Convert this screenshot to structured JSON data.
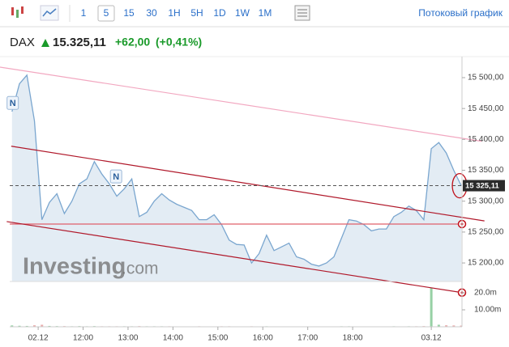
{
  "toolbar": {
    "intervals": [
      "1",
      "5",
      "15",
      "30",
      "1H",
      "5H",
      "1D",
      "1W",
      "1M"
    ],
    "selected_index": 1,
    "stream_link": "Потоковый график"
  },
  "header": {
    "symbol": "DAX",
    "price": "15.325,11",
    "change": "+62,00",
    "change_percent": "(+0,41%)"
  },
  "watermark": {
    "main": "Investing",
    "suffix": ".com"
  },
  "chart_data": {
    "type": "line",
    "color": "#7aa6cf",
    "fill_color": "#e3ecf4",
    "x": [
      625,
      635,
      645,
      655,
      665,
      675,
      685,
      695,
      705,
      715,
      725,
      735,
      745,
      755,
      765,
      775,
      785,
      795,
      805,
      815,
      825,
      835,
      845,
      855,
      865,
      875,
      885,
      895,
      905,
      915,
      925,
      935,
      945,
      955,
      965,
      975,
      985,
      995,
      1005,
      1015,
      1025,
      1035,
      1045,
      1055,
      1065,
      1075,
      1085,
      1095,
      1105,
      1115,
      1125,
      1135,
      1145,
      1155,
      1165,
      1175,
      1185,
      1195,
      1205,
      1215,
      1225
    ],
    "values": [
      15445,
      15490,
      15504,
      15430,
      15270,
      15298,
      15312,
      15280,
      15300,
      15328,
      15336,
      15364,
      15344,
      15328,
      15308,
      15320,
      15336,
      15275,
      15282,
      15300,
      15312,
      15302,
      15295,
      15290,
      15285,
      15270,
      15270,
      15278,
      15262,
      15237,
      15230,
      15229,
      15200,
      15215,
      15245,
      15220,
      15226,
      15232,
      15210,
      15206,
      15198,
      15195,
      15200,
      15210,
      15240,
      15270,
      15268,
      15262,
      15252,
      15255,
      15255,
      15275,
      15282,
      15292,
      15285,
      15270,
      15385,
      15395,
      15378,
      15350,
      15325
    ],
    "xlim": [
      622,
      1226
    ],
    "ylim": [
      15170,
      15534
    ],
    "xticks": [
      {
        "value": 660,
        "label": "02.12"
      },
      {
        "value": 720,
        "label": "12:00"
      },
      {
        "value": 780,
        "label": "13:00"
      },
      {
        "value": 840,
        "label": "14:00"
      },
      {
        "value": 900,
        "label": "15:00"
      },
      {
        "value": 960,
        "label": "16:00"
      },
      {
        "value": 1020,
        "label": "17:00"
      },
      {
        "value": 1080,
        "label": "18:00"
      },
      {
        "value": 1185,
        "label": "03.12"
      }
    ],
    "yticks": [
      {
        "value": 15200,
        "label": "15 200,00"
      },
      {
        "value": 15250,
        "label": "15 250,00"
      },
      {
        "value": 15300,
        "label": "15 300,00"
      },
      {
        "value": 15350,
        "label": "15 350,00"
      },
      {
        "value": 15400,
        "label": "15 400,00"
      },
      {
        "value": 15450,
        "label": "15 450,00"
      },
      {
        "value": 15500,
        "label": "15 500,00"
      }
    ],
    "last_price": {
      "value": 15325.11,
      "label": "15 325,11"
    },
    "volume": {
      "up_color": "#7dc58f",
      "down_color": "#e59a9a",
      "values": [
        800000,
        600000,
        500000,
        900000,
        1200000,
        500000,
        400000,
        400000,
        300000,
        400000,
        300000,
        400000,
        300000,
        300000,
        300000,
        300000,
        300000,
        400000,
        300000,
        300000,
        300000,
        300000,
        200000,
        200000,
        200000,
        300000,
        200000,
        200000,
        300000,
        300000,
        200000,
        200000,
        300000,
        200000,
        300000,
        200000,
        200000,
        200000,
        200000,
        200000,
        200000,
        200000,
        200000,
        200000,
        300000,
        300000,
        200000,
        200000,
        200000,
        200000,
        200000,
        300000,
        200000,
        300000,
        300000,
        400000,
        23000000,
        1200000,
        900000,
        800000,
        700000
      ],
      "ylim": [
        0,
        26700000
      ],
      "yticks": [
        {
          "value": 10000000,
          "label": "10.00m"
        },
        {
          "value": 20000000,
          "label": "20.0m"
        }
      ]
    },
    "annotations": [
      {
        "label": "N",
        "x": 626,
        "y": 15459
      },
      {
        "label": "N",
        "x": 764,
        "y": 15340
      }
    ],
    "drawings": [
      {
        "color": "#f2a7c0",
        "points": [
          [
            609,
            15517
          ],
          [
            1252,
            15397
          ]
        ]
      },
      {
        "color": "#b0182a",
        "points": [
          [
            624,
            15389
          ],
          [
            1256,
            15268
          ]
        ]
      },
      {
        "color": "#e0606a",
        "points": [
          [
            622,
            15263
          ],
          [
            1226,
            15263
          ]
        ],
        "handle": true
      },
      {
        "color": "#b0182a",
        "points": [
          [
            618,
            15267
          ],
          [
            1226,
            15152
          ]
        ],
        "handle": true
      }
    ]
  }
}
